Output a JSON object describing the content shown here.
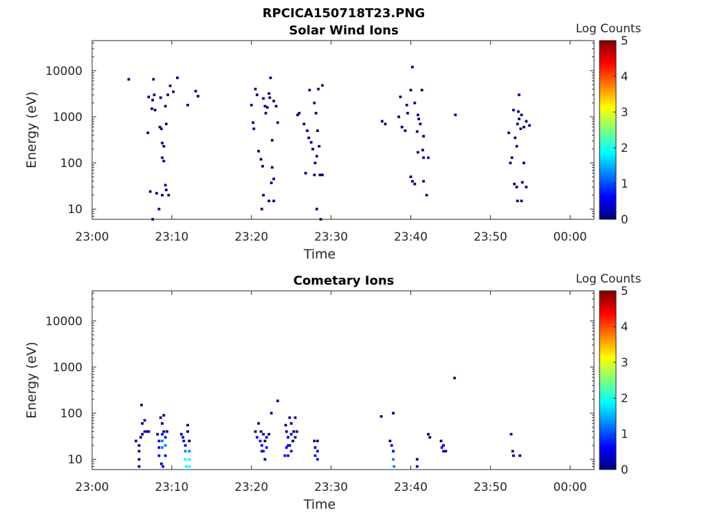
{
  "figure": {
    "suptitle": "RPCICA150718T23.PNG",
    "colormap": [
      "#00007f",
      "#0000ff",
      "#007fff",
      "#00ffff",
      "#7fff7f",
      "#ffff00",
      "#ff7f00",
      "#ff0000",
      "#7f0000"
    ]
  },
  "chart_data": [
    {
      "type": "heatmap",
      "title": "Solar Wind Ions",
      "xlabel": "Time",
      "ylabel": "Energy (eV)",
      "xlim": [
        "23:00",
        "00:03"
      ],
      "xticks": [
        "23:00",
        "23:10",
        "23:20",
        "23:30",
        "23:40",
        "23:50",
        "00:00"
      ],
      "yscale": "log",
      "ylim": [
        6,
        45000
      ],
      "yticks": [
        "10",
        "100",
        "1000",
        "10000"
      ],
      "colorbar": {
        "label": "Log Counts",
        "range": [
          0,
          5
        ],
        "ticks": [
          "0",
          "1",
          "2",
          "3",
          "4",
          "5"
        ]
      },
      "points": [
        [
          4.6,
          6500,
          0.3
        ],
        [
          7.0,
          450,
          0.3
        ],
        [
          7.1,
          2700,
          0.3
        ],
        [
          7.5,
          1500,
          0.3
        ],
        [
          7.6,
          2300,
          0.3
        ],
        [
          7.7,
          6500,
          0.3
        ],
        [
          7.8,
          3000,
          0.3
        ],
        [
          7.9,
          1400,
          0.3
        ],
        [
          8.5,
          600,
          0.3
        ],
        [
          8.7,
          550,
          0.3
        ],
        [
          8.8,
          270,
          0.3
        ],
        [
          9.0,
          230,
          0.3
        ],
        [
          8.8,
          130,
          0.3
        ],
        [
          9.0,
          110,
          0.3
        ],
        [
          8.6,
          2600,
          0.3
        ],
        [
          9.2,
          1700,
          0.3
        ],
        [
          9.3,
          700,
          0.3
        ],
        [
          9.5,
          3000,
          0.3
        ],
        [
          9.8,
          4700,
          0.3
        ],
        [
          10.2,
          3500,
          0.3
        ],
        [
          10.7,
          7000,
          0.3
        ],
        [
          12.0,
          1800,
          0.3
        ],
        [
          13.0,
          3600,
          0.3
        ],
        [
          13.3,
          2800,
          0.3
        ],
        [
          7.3,
          24,
          0.3
        ],
        [
          8.1,
          22,
          0.3
        ],
        [
          8.8,
          20,
          0.3
        ],
        [
          9.2,
          33,
          0.3
        ],
        [
          9.3,
          26,
          0.3
        ],
        [
          9.6,
          20,
          0.3
        ],
        [
          8.4,
          10,
          0.3
        ],
        [
          7.6,
          6,
          0.3
        ],
        [
          20.0,
          1800,
          0.3
        ],
        [
          20.2,
          750,
          0.3
        ],
        [
          20.3,
          550,
          0.3
        ],
        [
          20.5,
          4000,
          0.3
        ],
        [
          20.7,
          3000,
          0.3
        ],
        [
          20.9,
          180,
          0.3
        ],
        [
          21.2,
          120,
          0.3
        ],
        [
          21.5,
          2500,
          0.3
        ],
        [
          21.7,
          1700,
          0.3
        ],
        [
          22.0,
          1600,
          0.3
        ],
        [
          22.2,
          3200,
          0.3
        ],
        [
          22.3,
          2600,
          0.3
        ],
        [
          22.4,
          7000,
          0.3
        ],
        [
          22.6,
          310,
          0.3
        ],
        [
          22.8,
          2200,
          0.3
        ],
        [
          23.1,
          1700,
          0.3
        ],
        [
          23.3,
          750,
          0.3
        ],
        [
          21.8,
          1200,
          0.3
        ],
        [
          21.4,
          85,
          0.3
        ],
        [
          22.6,
          80,
          0.3
        ],
        [
          22.8,
          45,
          0.3
        ],
        [
          21.5,
          20,
          0.3
        ],
        [
          21.3,
          10,
          0.3
        ],
        [
          22.2,
          15,
          0.3
        ],
        [
          22.8,
          15,
          0.3
        ],
        [
          22.5,
          37,
          0.3
        ],
        [
          25.8,
          1100,
          0.3
        ],
        [
          26.0,
          1200,
          0.3
        ],
        [
          26.6,
          700,
          0.3
        ],
        [
          27.0,
          500,
          0.3
        ],
        [
          27.3,
          3800,
          0.3
        ],
        [
          27.2,
          350,
          0.3
        ],
        [
          27.5,
          280,
          0.3
        ],
        [
          27.7,
          200,
          0.3
        ],
        [
          27.9,
          2000,
          0.3
        ],
        [
          28.1,
          1200,
          0.3
        ],
        [
          28.4,
          4000,
          0.3
        ],
        [
          28.3,
          500,
          0.3
        ],
        [
          28.5,
          230,
          0.3
        ],
        [
          28.9,
          4800,
          0.3
        ],
        [
          28.2,
          140,
          0.3
        ],
        [
          28.0,
          100,
          0.3
        ],
        [
          26.8,
          60,
          0.3
        ],
        [
          27.9,
          55,
          0.3
        ],
        [
          28.6,
          55,
          0.3
        ],
        [
          28.9,
          55,
          0.3
        ],
        [
          28.2,
          10,
          0.3
        ],
        [
          28.7,
          6,
          0.3
        ],
        [
          36.4,
          800,
          0.3
        ],
        [
          36.8,
          700,
          0.3
        ],
        [
          38.5,
          1000,
          0.3
        ],
        [
          38.7,
          2700,
          0.3
        ],
        [
          38.9,
          600,
          0.3
        ],
        [
          39.3,
          500,
          0.3
        ],
        [
          39.5,
          1800,
          0.3
        ],
        [
          39.6,
          1200,
          0.3
        ],
        [
          40.0,
          3800,
          0.3
        ],
        [
          40.2,
          12000,
          0.3
        ],
        [
          40.5,
          2000,
          0.3
        ],
        [
          40.9,
          1100,
          0.3
        ],
        [
          41.0,
          900,
          0.3
        ],
        [
          41.2,
          700,
          0.3
        ],
        [
          41.4,
          3800,
          0.3
        ],
        [
          41.6,
          380,
          0.3
        ],
        [
          40.8,
          480,
          0.3
        ],
        [
          40.9,
          170,
          0.3
        ],
        [
          41.5,
          190,
          0.3
        ],
        [
          41.6,
          130,
          0.3
        ],
        [
          42.2,
          130,
          0.3
        ],
        [
          45.6,
          1100,
          0.3
        ],
        [
          40.0,
          50,
          0.3
        ],
        [
          40.2,
          40,
          0.3
        ],
        [
          40.5,
          35,
          0.3
        ],
        [
          41.6,
          40,
          0.3
        ],
        [
          42.0,
          20,
          0.3
        ],
        [
          52.3,
          450,
          0.3
        ],
        [
          52.5,
          100,
          0.3
        ],
        [
          52.7,
          130,
          0.3
        ],
        [
          52.9,
          1400,
          0.3
        ],
        [
          53.1,
          350,
          0.3
        ],
        [
          53.3,
          230,
          0.3
        ],
        [
          53.4,
          700,
          0.3
        ],
        [
          53.6,
          3000,
          0.3
        ],
        [
          53.5,
          1300,
          0.3
        ],
        [
          53.6,
          900,
          0.3
        ],
        [
          53.8,
          550,
          0.3
        ],
        [
          53.9,
          1100,
          0.3
        ],
        [
          54.2,
          600,
          0.3
        ],
        [
          54.5,
          800,
          0.3
        ],
        [
          54.9,
          650,
          0.3
        ],
        [
          54.2,
          100,
          0.3
        ],
        [
          53.0,
          35,
          0.3
        ],
        [
          53.3,
          30,
          0.3
        ],
        [
          54.0,
          38,
          0.3
        ],
        [
          54.5,
          30,
          0.3
        ],
        [
          53.4,
          15,
          0.3
        ],
        [
          53.9,
          15,
          0.3
        ]
      ]
    },
    {
      "type": "heatmap",
      "title": "Cometary Ions",
      "xlabel": "Time",
      "ylabel": "Energy (eV)",
      "xlim": [
        "23:00",
        "00:03"
      ],
      "xticks": [
        "23:00",
        "23:10",
        "23:20",
        "23:30",
        "23:40",
        "23:50",
        "00:00"
      ],
      "yscale": "log",
      "ylim": [
        6,
        45000
      ],
      "yticks": [
        "10",
        "100",
        "1000",
        "10000"
      ],
      "colorbar": {
        "label": "Log Counts",
        "range": [
          0,
          5
        ],
        "ticks": [
          "0",
          "1",
          "2",
          "3",
          "4",
          "5"
        ]
      },
      "points": [
        [
          5.5,
          25,
          0.3
        ],
        [
          5.9,
          20,
          0.3
        ],
        [
          5.9,
          15,
          0.3
        ],
        [
          5.9,
          10,
          0.3
        ],
        [
          5.9,
          7,
          0.3
        ],
        [
          6.1,
          30,
          0.3
        ],
        [
          6.3,
          35,
          0.3
        ],
        [
          6.3,
          60,
          0.3
        ],
        [
          6.6,
          40,
          0.6
        ],
        [
          6.6,
          70,
          0.3
        ],
        [
          6.2,
          150,
          0.3
        ],
        [
          6.9,
          40,
          0.3
        ],
        [
          7.1,
          40,
          0.3
        ],
        [
          8.2,
          35,
          0.3
        ],
        [
          8.4,
          25,
          0.5
        ],
        [
          8.4,
          18,
          0.6
        ],
        [
          8.4,
          12,
          0.8
        ],
        [
          8.6,
          80,
          0.3
        ],
        [
          8.8,
          60,
          0.3
        ],
        [
          8.8,
          35,
          0.6
        ],
        [
          8.8,
          25,
          1.0
        ],
        [
          8.8,
          18,
          1.0
        ],
        [
          9.0,
          90,
          0.3
        ],
        [
          9.0,
          40,
          0.3
        ],
        [
          9.2,
          30,
          0.6
        ],
        [
          9.2,
          20,
          1.2
        ],
        [
          9.2,
          12,
          0.9
        ],
        [
          9.4,
          40,
          0.3
        ],
        [
          8.7,
          8,
          0.3
        ],
        [
          8.9,
          7,
          0.5
        ],
        [
          11.2,
          35,
          0.3
        ],
        [
          11.4,
          30,
          0.4
        ],
        [
          11.5,
          25,
          0.6
        ],
        [
          11.7,
          20,
          0.9
        ],
        [
          11.7,
          15,
          1.5
        ],
        [
          11.7,
          10,
          1.7
        ],
        [
          11.8,
          7,
          1.8
        ],
        [
          12.0,
          55,
          0.3
        ],
        [
          12.0,
          40,
          0.3
        ],
        [
          12.2,
          25,
          0.3
        ],
        [
          12.2,
          15,
          1.2
        ],
        [
          12.2,
          10,
          1.6
        ],
        [
          12.2,
          7,
          1.9
        ],
        [
          20.5,
          40,
          0.3
        ],
        [
          20.7,
          30,
          0.4
        ],
        [
          20.9,
          60,
          0.3
        ],
        [
          21.1,
          25,
          0.5
        ],
        [
          21.2,
          40,
          0.3
        ],
        [
          21.3,
          20,
          0.6
        ],
        [
          21.3,
          15,
          0.6
        ],
        [
          21.5,
          35,
          0.3
        ],
        [
          21.5,
          15,
          0.5
        ],
        [
          21.7,
          25,
          0.3
        ],
        [
          21.7,
          10,
          0.3
        ],
        [
          21.9,
          30,
          0.3
        ],
        [
          21.9,
          18,
          0.4
        ],
        [
          22.2,
          35,
          0.3
        ],
        [
          22.5,
          100,
          0.3
        ],
        [
          23.3,
          185,
          0.3
        ],
        [
          24.3,
          55,
          0.3
        ],
        [
          24.4,
          40,
          0.3
        ],
        [
          24.6,
          30,
          0.4
        ],
        [
          24.6,
          20,
          0.5
        ],
        [
          24.6,
          12,
          0.6
        ],
        [
          24.8,
          80,
          0.3
        ],
        [
          24.8,
          20,
          0.5
        ],
        [
          25.0,
          60,
          0.3
        ],
        [
          25.0,
          35,
          0.6
        ],
        [
          25.0,
          15,
          0.8
        ],
        [
          25.2,
          25,
          0.3
        ],
        [
          25.3,
          40,
          0.3
        ],
        [
          25.5,
          30,
          0.3
        ],
        [
          25.5,
          80,
          0.3
        ],
        [
          25.7,
          40,
          0.3
        ],
        [
          24.4,
          18,
          0.5
        ],
        [
          24.2,
          12,
          0.4
        ],
        [
          27.9,
          25,
          0.3
        ],
        [
          28.0,
          18,
          0.4
        ],
        [
          28.0,
          12,
          0.6
        ],
        [
          28.3,
          25,
          0.3
        ],
        [
          28.3,
          15,
          0.6
        ],
        [
          28.3,
          10,
          0.8
        ],
        [
          36.3,
          85,
          0.3
        ],
        [
          37.4,
          25,
          0.3
        ],
        [
          37.6,
          20,
          0.4
        ],
        [
          37.8,
          15,
          0.8
        ],
        [
          37.8,
          10,
          1.2
        ],
        [
          37.9,
          7,
          1.4
        ],
        [
          37.8,
          100,
          0.3
        ],
        [
          40.8,
          10,
          0.3
        ],
        [
          40.8,
          7,
          0.3
        ],
        [
          42.2,
          35,
          0.3
        ],
        [
          42.4,
          30,
          0.3
        ],
        [
          43.8,
          25,
          0.3
        ],
        [
          43.9,
          18,
          0.4
        ],
        [
          44.1,
          15,
          0.5
        ],
        [
          44.1,
          20,
          0.3
        ],
        [
          44.4,
          15,
          0.3
        ],
        [
          45.5,
          580,
          0.3
        ],
        [
          52.6,
          35,
          0.3
        ],
        [
          52.8,
          15,
          0.3
        ],
        [
          52.9,
          12,
          0.3
        ],
        [
          53.7,
          12,
          0.3
        ]
      ]
    }
  ]
}
